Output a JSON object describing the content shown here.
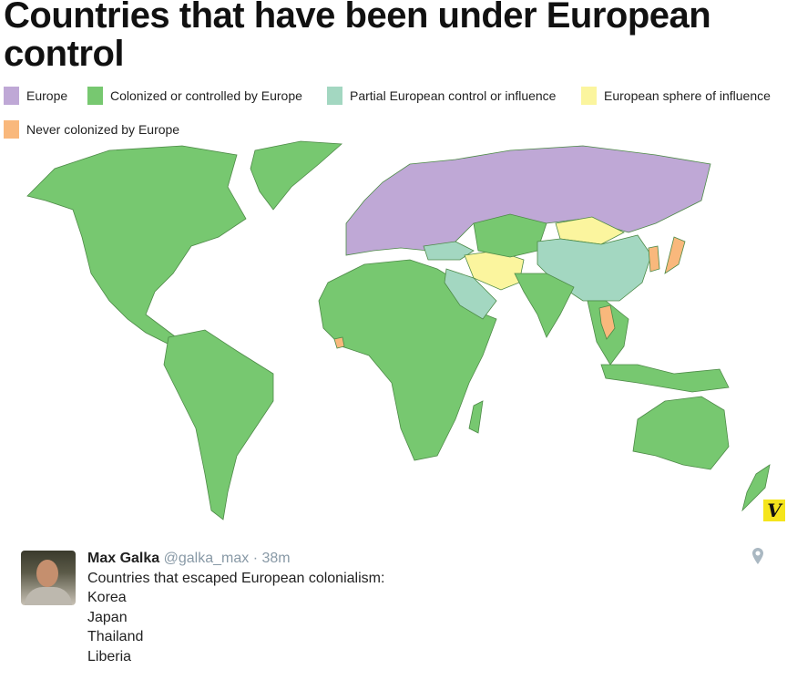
{
  "map": {
    "title": "Countries that have been under European control",
    "legend": [
      {
        "label": "Europe",
        "color": "#bfa8d6"
      },
      {
        "label": "Colonized or controlled by Europe",
        "color": "#77c870"
      },
      {
        "label": "Partial European control or influence",
        "color": "#a3d7c1"
      },
      {
        "label": "European sphere of influence",
        "color": "#fbf59e"
      },
      {
        "label": "Never colonized by Europe",
        "color": "#f9b87c"
      }
    ],
    "logo": "V"
  },
  "tweet": {
    "author_name": "Max Galka",
    "handle": "@galka_max",
    "separator": "·",
    "time": "38m",
    "lines": [
      "Countries that escaped European colonialism:",
      "Korea",
      "Japan",
      "Thailand",
      "Liberia"
    ],
    "location_icon": "map-pin-icon"
  }
}
